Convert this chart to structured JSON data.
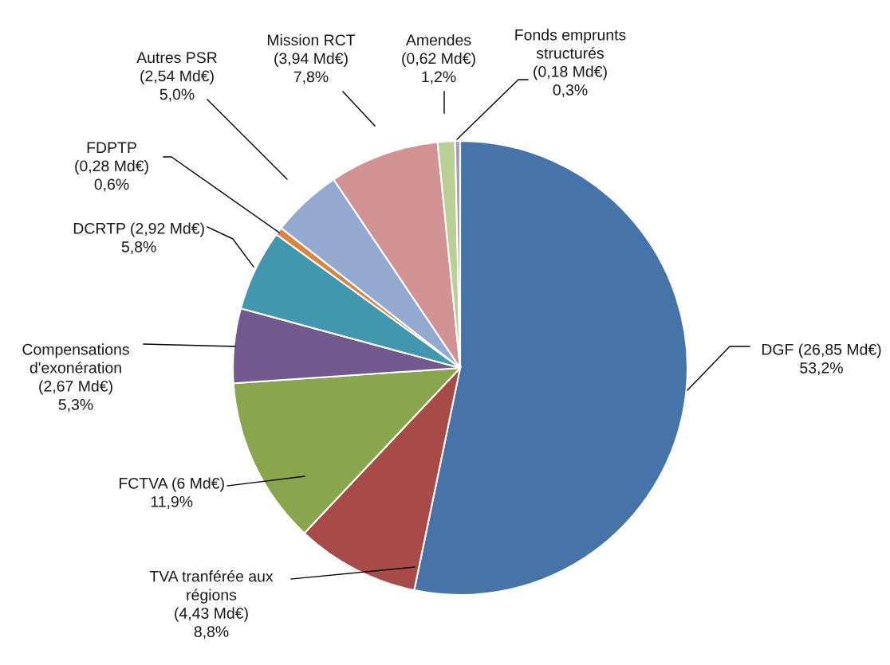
{
  "chart_data": {
    "type": "pie",
    "categories": [
      "DGF",
      "TVA tranférée aux\nrégions",
      "FCTVA",
      "Compensations\nd'exonération",
      "DCRTP",
      "FDPTP",
      "Autres PSR",
      "Mission RCT",
      "Amendes",
      "Fonds emprunts\nstructurés"
    ],
    "values": [
      26.85,
      4.43,
      6,
      2.67,
      2.92,
      0.28,
      2.54,
      3.94,
      0.62,
      0.18
    ],
    "value_labels": [
      "(26,85 Md€)\n53,2%",
      "(4,43 Md€)\n8,8%",
      "(6 Md€)\n11,9%",
      "(2,67 Md€)\n5,3%",
      "(2,92 Md€)\n5,8%",
      "(0,28 Md€)\n0,6%",
      "(2,54 Md€)\n5,0%",
      "(3,94 Md€)\n7,8%",
      "(0,62 Md€)\n1,2%",
      "(0,18 Md€)\n0,3%"
    ],
    "colors": [
      "#4674a8",
      "#a84a48",
      "#89a64e",
      "#71598e",
      "#4197ae",
      "#db843d",
      "#93a9cf",
      "#d09392",
      "#b9cf96",
      "#a99bbd"
    ],
    "legend": false
  }
}
